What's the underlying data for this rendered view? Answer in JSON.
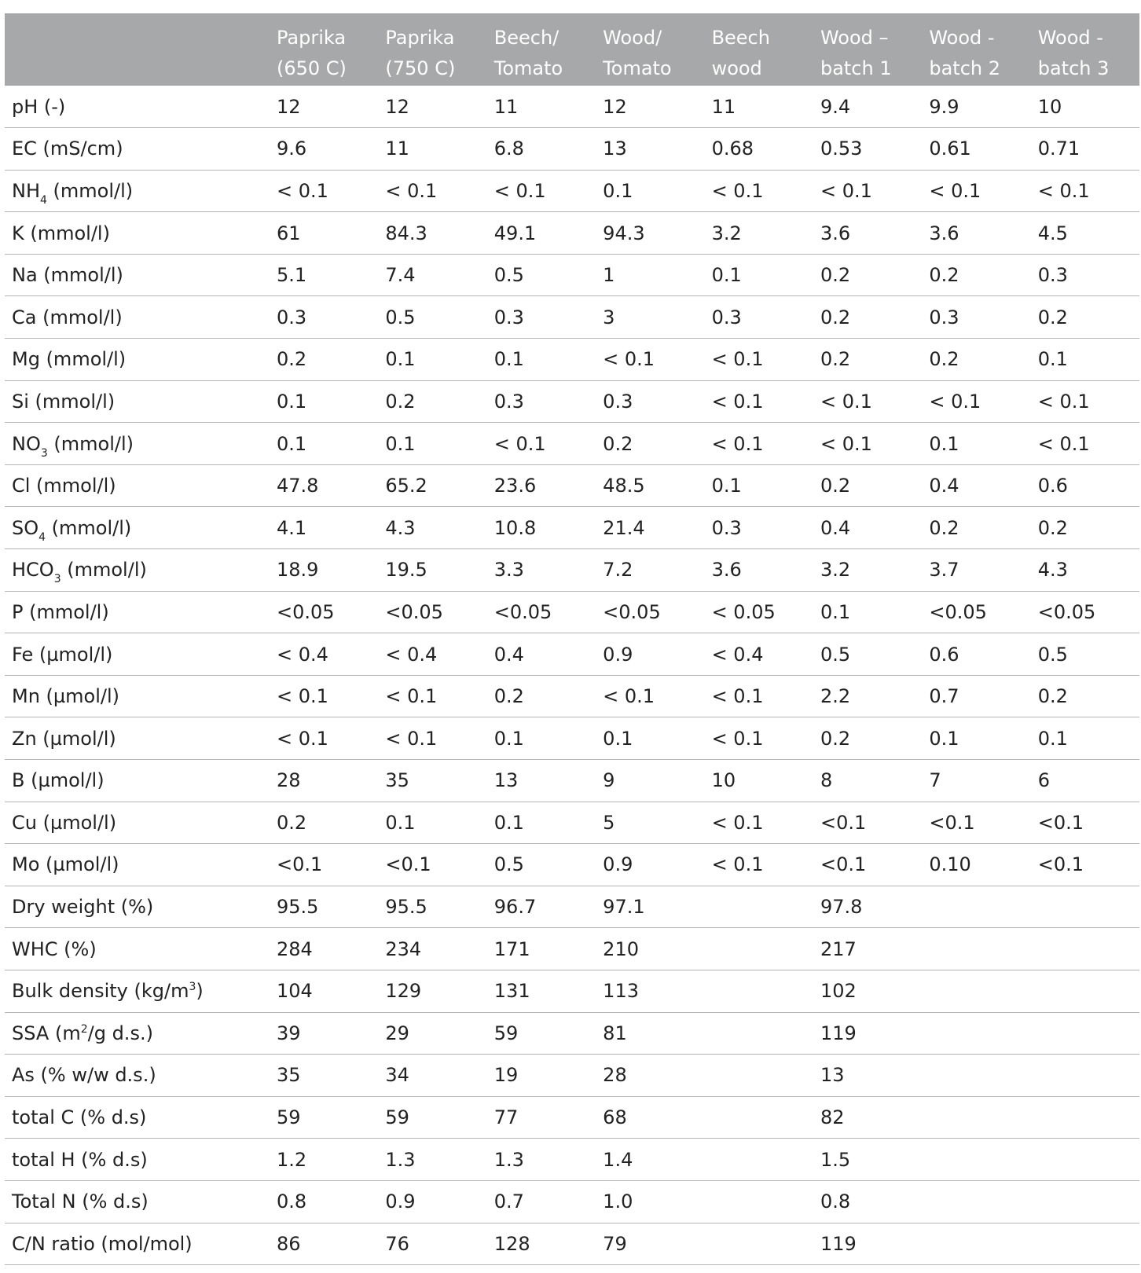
{
  "headers": [
    "",
    "Paprika (650 C)",
    "Paprika (750 C)",
    "Beech/ Tomato",
    "Wood/ Tomato",
    "Beech wood",
    "Wood – batch 1",
    "Wood - batch 2",
    "Wood - batch 3"
  ],
  "header_lines": [
    [
      "",
      ""
    ],
    [
      "Paprika",
      "(650 C)"
    ],
    [
      "Paprika",
      "(750 C)"
    ],
    [
      "Beech/",
      "Tomato"
    ],
    [
      "Wood/",
      "Tomato"
    ],
    [
      "Beech",
      "wood"
    ],
    [
      "Wood –",
      "batch 1"
    ],
    [
      "Wood -",
      "batch 2"
    ],
    [
      "Wood -",
      "batch 3"
    ]
  ],
  "rows": [
    {
      "label": [
        "pH (-)"
      ],
      "values": [
        "12",
        "12",
        "11",
        "12",
        "11",
        "9.4",
        "9.9",
        "10"
      ]
    },
    {
      "label": [
        "EC (mS/cm)"
      ],
      "values": [
        "9.6",
        "11",
        "6.8",
        "13",
        "0.68",
        "0.53",
        "0.61",
        "0.71"
      ]
    },
    {
      "label": [
        "NH",
        {
          "sub": "4"
        },
        " (mmol/l)"
      ],
      "values": [
        "< 0.1",
        "< 0.1",
        "< 0.1",
        "0.1",
        "< 0.1",
        "< 0.1",
        "< 0.1",
        "< 0.1"
      ]
    },
    {
      "label": [
        "K (mmol/l)"
      ],
      "values": [
        "61",
        "84.3",
        "49.1",
        "94.3",
        "3.2",
        "3.6",
        "3.6",
        "4.5"
      ]
    },
    {
      "label": [
        "Na (mmol/l)"
      ],
      "values": [
        "5.1",
        "7.4",
        "0.5",
        "1",
        "0.1",
        "0.2",
        "0.2",
        "0.3"
      ]
    },
    {
      "label": [
        "Ca (mmol/l)"
      ],
      "values": [
        "0.3",
        "0.5",
        "0.3",
        "3",
        "0.3",
        "0.2",
        "0.3",
        "0.2"
      ]
    },
    {
      "label": [
        "Mg (mmol/l)"
      ],
      "values": [
        "0.2",
        "0.1",
        "0.1",
        "< 0.1",
        "< 0.1",
        "0.2",
        "0.2",
        "0.1"
      ]
    },
    {
      "label": [
        "Si (mmol/l)"
      ],
      "values": [
        "0.1",
        "0.2",
        "0.3",
        "0.3",
        "< 0.1",
        "< 0.1",
        "< 0.1",
        "< 0.1"
      ]
    },
    {
      "label": [
        "NO",
        {
          "sub": "3"
        },
        " (mmol/l)"
      ],
      "values": [
        "0.1",
        "0.1",
        "< 0.1",
        "0.2",
        "< 0.1",
        "< 0.1",
        "0.1",
        "< 0.1"
      ]
    },
    {
      "label": [
        "Cl (mmol/l)"
      ],
      "values": [
        "47.8",
        "65.2",
        "23.6",
        "48.5",
        "0.1",
        "0.2",
        "0.4",
        "0.6"
      ]
    },
    {
      "label": [
        "SO",
        {
          "sub": "4"
        },
        " (mmol/l)"
      ],
      "values": [
        "4.1",
        "4.3",
        "10.8",
        "21.4",
        "0.3",
        "0.4",
        "0.2",
        "0.2"
      ]
    },
    {
      "label": [
        "HCO",
        {
          "sub": "3"
        },
        " (mmol/l)"
      ],
      "values": [
        "18.9",
        "19.5",
        "3.3",
        "7.2",
        "3.6",
        "3.2",
        "3.7",
        "4.3"
      ]
    },
    {
      "label": [
        "P (mmol/l)"
      ],
      "values": [
        "<0.05",
        "<0.05",
        "<0.05",
        "<0.05",
        "< 0.05",
        "0.1",
        "<0.05",
        "<0.05"
      ]
    },
    {
      "label": [
        "Fe (µmol/l)"
      ],
      "values": [
        "< 0.4",
        "< 0.4",
        "0.4",
        "0.9",
        "< 0.4",
        "0.5",
        "0.6",
        "0.5"
      ]
    },
    {
      "label": [
        "Mn (µmol/l)"
      ],
      "values": [
        "< 0.1",
        "< 0.1",
        "0.2",
        "< 0.1",
        "< 0.1",
        "2.2",
        "0.7",
        "0.2"
      ]
    },
    {
      "label": [
        "Zn (µmol/l)"
      ],
      "values": [
        "< 0.1",
        "< 0.1",
        "0.1",
        "0.1",
        "< 0.1",
        "0.2",
        "0.1",
        "0.1"
      ]
    },
    {
      "label": [
        "B (µmol/l)"
      ],
      "values": [
        "28",
        "35",
        "13",
        "9",
        "10",
        "8",
        "7",
        "6"
      ]
    },
    {
      "label": [
        "Cu (µmol/l)"
      ],
      "values": [
        "0.2",
        "0.1",
        "0.1",
        "5",
        "< 0.1",
        "<0.1",
        "<0.1",
        "<0.1"
      ]
    },
    {
      "label": [
        "Mo (µmol/l)"
      ],
      "values": [
        "<0.1",
        "<0.1",
        "0.5",
        "0.9",
        "< 0.1",
        "<0.1",
        "0.10",
        "<0.1"
      ]
    },
    {
      "label": [
        "Dry weight (%)"
      ],
      "values": [
        "95.5",
        "95.5",
        "96.7",
        "97.1",
        "",
        "97.8",
        "",
        ""
      ]
    },
    {
      "label": [
        "WHC (%)"
      ],
      "values": [
        "284",
        "234",
        "171",
        "210",
        "",
        "217",
        "",
        ""
      ]
    },
    {
      "label": [
        "Bulk density (kg/m",
        {
          "sup": "3"
        },
        ")"
      ],
      "values": [
        "104",
        "129",
        "131",
        "113",
        "",
        "102",
        "",
        ""
      ]
    },
    {
      "label": [
        "SSA (m",
        {
          "sup": "2"
        },
        "/g d.s.)"
      ],
      "values": [
        "39",
        "29",
        "59",
        "81",
        "",
        "119",
        "",
        ""
      ]
    },
    {
      "label": [
        "As (% w/w d.s.)"
      ],
      "values": [
        "35",
        "34",
        "19",
        "28",
        "",
        "13",
        "",
        ""
      ]
    },
    {
      "label": [
        "total C (% d.s)"
      ],
      "values": [
        "59",
        "59",
        "77",
        "68",
        "",
        "82",
        "",
        ""
      ]
    },
    {
      "label": [
        "total H (% d.s)"
      ],
      "values": [
        "1.2",
        "1.3",
        "1.3",
        "1.4",
        "",
        "1.5",
        "",
        ""
      ]
    },
    {
      "label": [
        "Total N (% d.s)"
      ],
      "values": [
        "0.8",
        "0.9",
        "0.7",
        "1.0",
        "",
        "0.8",
        "",
        ""
      ]
    },
    {
      "label": [
        "C/N ratio (mol/mol)"
      ],
      "values": [
        "86",
        "76",
        "128",
        "79",
        "",
        "119",
        "",
        ""
      ]
    }
  ],
  "colors": {
    "header_bg": "#a7a8aa",
    "header_text": "#ffffff",
    "row_divider": "#b5b5b5",
    "body_text": "#222222"
  }
}
